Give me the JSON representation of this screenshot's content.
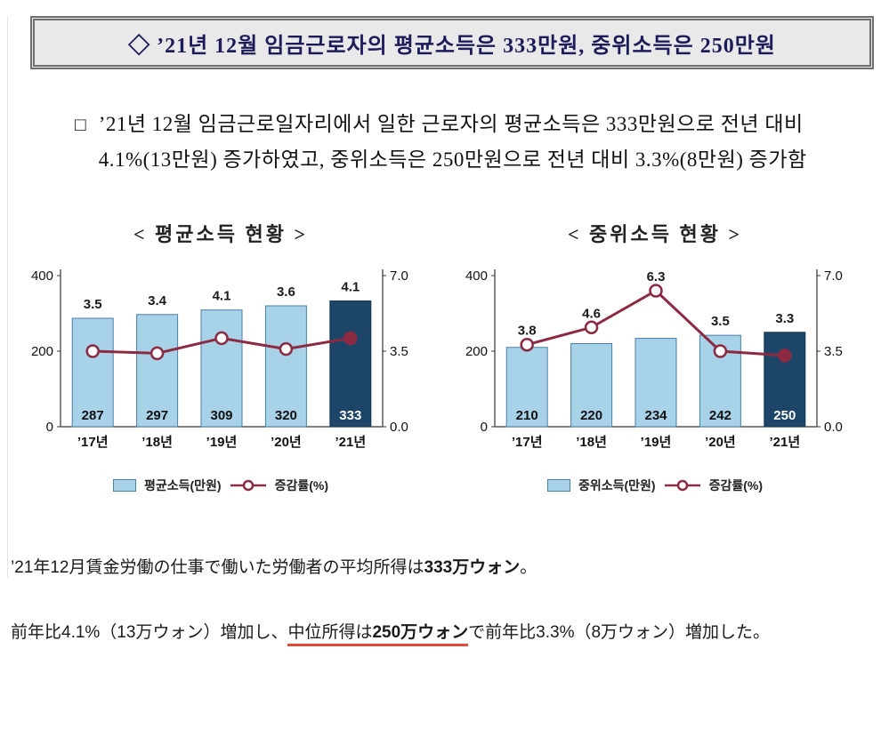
{
  "header_box": {
    "text": "◇ ’21년 12월 임금근로자의 평균소득은 333만원, 중위소득은 250만원"
  },
  "summary": {
    "bullet": "□",
    "text": "’21년 12월 임금근로일자리에서 일한 근로자의 평균소득은 333만원으로 전년 대비 4.1%(13만원) 증가하였고, 중위소득은 250만원으로 전년 대비 3.3%(8만원) 증가함"
  },
  "chart_data": [
    {
      "type": "bar",
      "title": "< 평균소득 현황 >",
      "categories": [
        "’17년",
        "’18년",
        "’19년",
        "’20년",
        "’21년"
      ],
      "bar_series": {
        "name": "평균소득(만원)",
        "values": [
          287,
          297,
          309,
          320,
          333
        ]
      },
      "line_series": {
        "name": "증감률(%)",
        "values": [
          3.5,
          3.4,
          4.1,
          3.6,
          4.1
        ]
      },
      "left_axis": {
        "ticks": [
          "0",
          "200",
          "400"
        ],
        "max": 400
      },
      "right_axis": {
        "ticks": [
          "0.0",
          "3.5",
          "7.0"
        ],
        "max": 7
      },
      "highlight_index": 4,
      "legend_position": "bottom",
      "grid": false
    },
    {
      "type": "bar",
      "title": "< 중위소득 현황 >",
      "categories": [
        "’17년",
        "’18년",
        "’19년",
        "’20년",
        "’21년"
      ],
      "bar_series": {
        "name": "중위소득(만원)",
        "values": [
          210,
          220,
          234,
          242,
          250
        ]
      },
      "line_series": {
        "name": "증감률(%)",
        "values": [
          3.8,
          4.6,
          6.3,
          3.5,
          3.3
        ]
      },
      "left_axis": {
        "ticks": [
          "0",
          "200",
          "400"
        ],
        "max": 400
      },
      "right_axis": {
        "ticks": [
          "0.0",
          "3.5",
          "7.0"
        ],
        "max": 7
      },
      "highlight_index": 4,
      "legend_position": "bottom",
      "grid": false
    }
  ],
  "footer": {
    "p1": {
      "lead": "’21年12月賃金労働の仕事で働いた労働者の平均所得は",
      "bold": "333万ウォン",
      "tail": "。"
    },
    "p2": {
      "lead": "前年比4.1%（13万ウォン）増加し、",
      "underline_normal": "中位所得は",
      "underline_bold": "250万ウォン",
      "tail": "で前年比3.3%（8万ウォン）増加した。"
    }
  },
  "colors": {
    "bar": "#a8d2e8",
    "bar_stroke": "#4a7fa8",
    "bar_highlight": "#1d4568",
    "bar_highlight_stroke": "#16354f",
    "line": "#8c2a42",
    "header_bg": "#e9e9e9",
    "header_border": "#6e6e6e",
    "header_text": "#1c1c5a",
    "underline_red": "#e04b3a"
  }
}
